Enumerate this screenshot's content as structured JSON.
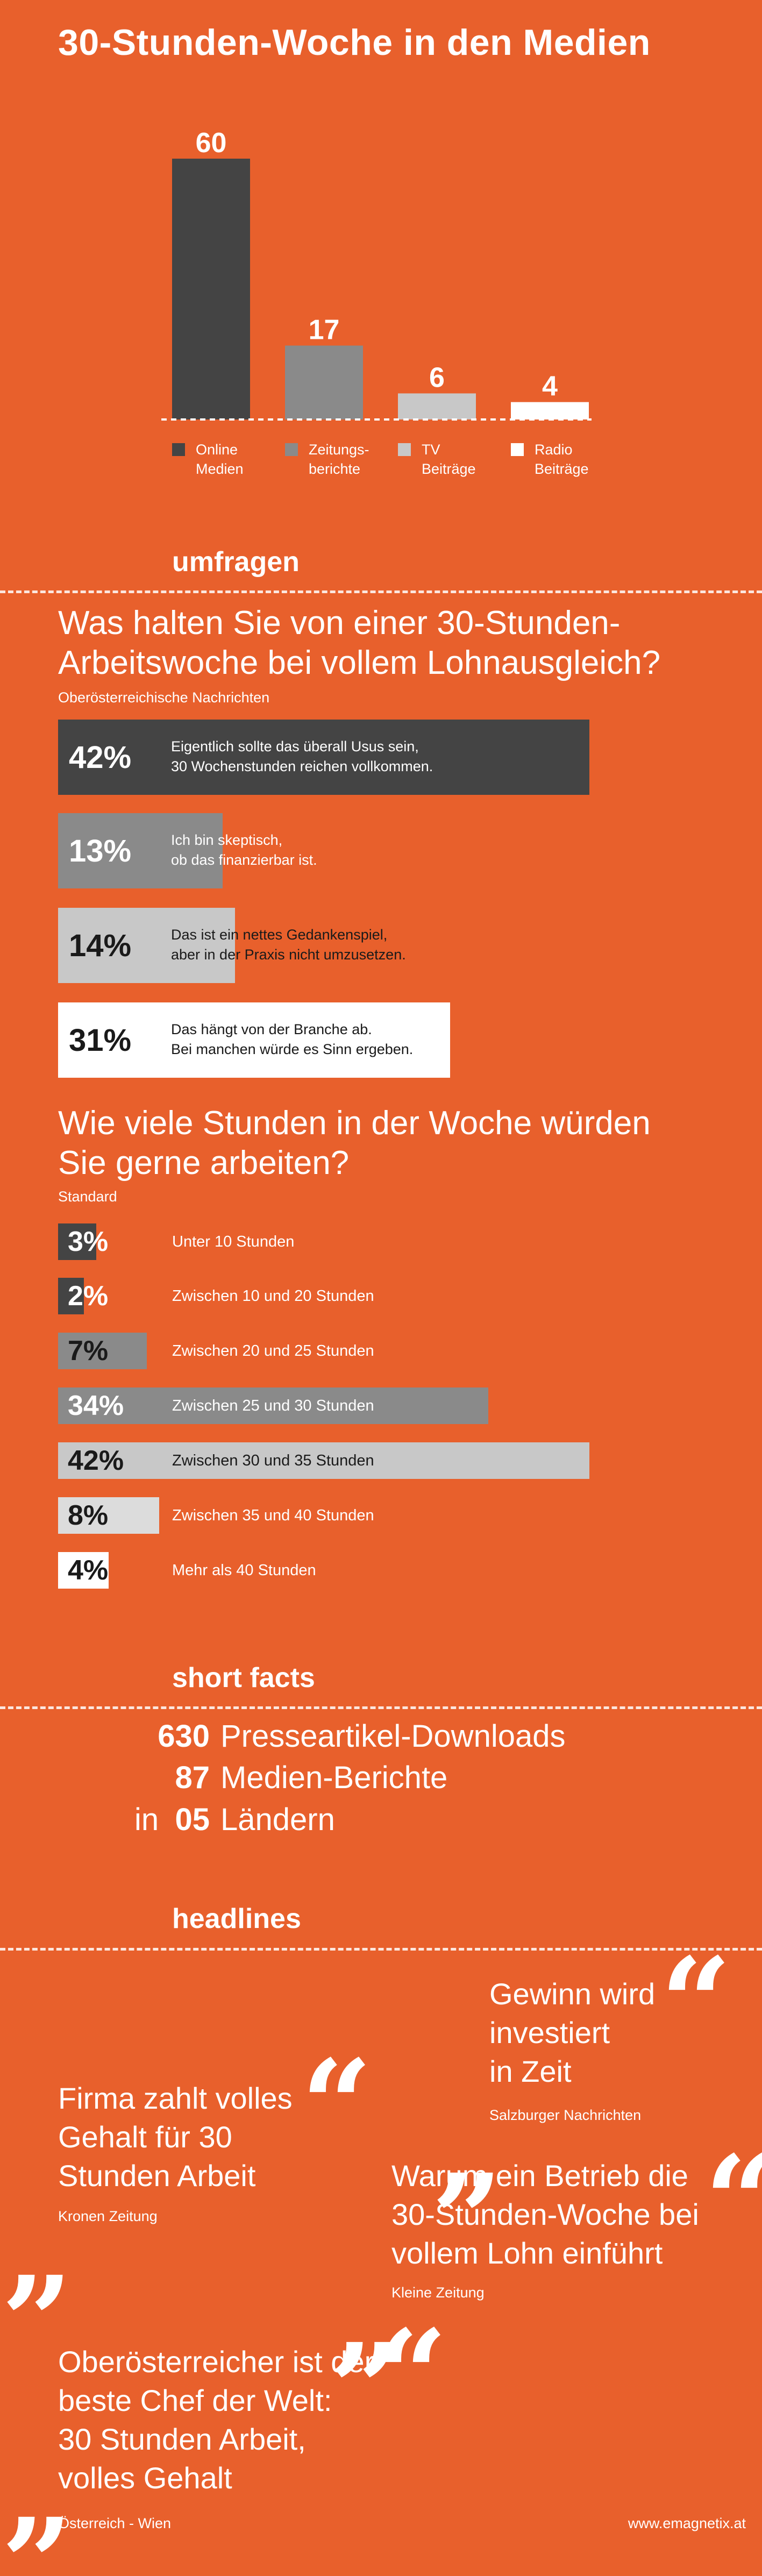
{
  "title": "30-Stunden-Woche in den Medien",
  "chart_data": [
    {
      "type": "bar",
      "categories": [
        "Online Medien",
        "Zeitungsberichte",
        "TV Beiträge",
        "Radio Beiträge"
      ],
      "values": [
        60,
        17,
        6,
        4
      ],
      "colors": [
        "#444444",
        "#8a8a8a",
        "#c8c8c8",
        "#ffffff"
      ],
      "legend": [
        {
          "line1": "Online",
          "line2": "Medien",
          "color": "#444444"
        },
        {
          "line1": "Zeitungs-",
          "line2": "berichte",
          "color": "#8a8a8a"
        },
        {
          "line1": "TV",
          "line2": "Beiträge",
          "color": "#c8c8c8"
        },
        {
          "line1": "Radio",
          "line2": "Beiträge",
          "color": "#ffffff"
        }
      ],
      "ylim": [
        0,
        60
      ]
    },
    {
      "type": "bar",
      "title": "Was halten Sie von einer 30-Stunden-Arbeitswoche bei vollem Lohnausgleich?",
      "source": "Oberösterreichische Nachrichten",
      "unit": "%",
      "items": [
        {
          "value": 42,
          "label": "42%",
          "line1": "Eigentlich sollte das überall Usus sein,",
          "line2": "30 Wochenstunden reichen vollkommen.",
          "color": "#444444",
          "text_color": "#ffffff"
        },
        {
          "value": 13,
          "label": "13%",
          "line1": "Ich bin skeptisch,",
          "line2": "ob das finanzierbar ist.",
          "color": "#8a8a8a",
          "text_color": "#ffffff"
        },
        {
          "value": 14,
          "label": "14%",
          "line1": "Das ist ein nettes Gedankenspiel,",
          "line2": "aber in der Praxis nicht umzusetzen.",
          "color": "#c8c8c8",
          "text_color": "#1a1a1a"
        },
        {
          "value": 31,
          "label": "31%",
          "line1": "Das hängt von der Branche ab.",
          "line2": "Bei manchen würde es Sinn ergeben.",
          "color": "#ffffff",
          "text_color": "#1a1a1a"
        }
      ]
    },
    {
      "type": "bar",
      "title": "Wie viele Stunden in der Woche würden Sie gerne arbeiten?",
      "source": "Standard",
      "unit": "%",
      "items": [
        {
          "value": 3,
          "label": "3%",
          "category": "Unter 10 Stunden",
          "color": "#444444"
        },
        {
          "value": 2,
          "label": "2%",
          "category": "Zwischen 10 und 20 Stunden",
          "color": "#444444"
        },
        {
          "value": 7,
          "label": "7%",
          "category": "Zwischen 20 und 25 Stunden",
          "color": "#8a8a8a"
        },
        {
          "value": 34,
          "label": "34%",
          "category": "Zwischen 25 und 30 Stunden",
          "color": "#8a8a8a"
        },
        {
          "value": 42,
          "label": "42%",
          "category": "Zwischen 30 und 35 Stunden",
          "color": "#c8c8c8"
        },
        {
          "value": 8,
          "label": "8%",
          "category": "Zwischen 35 und 40 Stunden",
          "color": "#dcdcdc"
        },
        {
          "value": 4,
          "label": "4%",
          "category": "Mehr als 40 Stunden",
          "color": "#ffffff"
        }
      ]
    }
  ],
  "sections": {
    "umfragen": "umfragen",
    "short_facts": "short facts",
    "headlines": "headlines"
  },
  "question1": {
    "title_line1": "Was halten Sie von einer 30-Stunden-",
    "title_line2": "Arbeitswoche bei vollem Lohnausgleich?",
    "source": "Oberösterreichische Nachrichten"
  },
  "question2": {
    "title_line1": "Wie viele Stunden in der Woche würden",
    "title_line2": "Sie gerne arbeiten?",
    "source": "Standard"
  },
  "facts": [
    {
      "prefix": "",
      "number": "630",
      "text": "Presseartikel-Downloads"
    },
    {
      "prefix": "",
      "number": "87",
      "text": "Medien-Berichte"
    },
    {
      "prefix": "in",
      "number": "05",
      "text": "Ländern"
    }
  ],
  "headlines": [
    {
      "lines": [
        "Gewinn wird",
        "investiert",
        "in Zeit"
      ],
      "source": "Salzburger Nachrichten"
    },
    {
      "lines": [
        "Firma zahlt volles",
        "Gehalt für 30",
        "Stunden Arbeit"
      ],
      "source": "Kronen Zeitung"
    },
    {
      "lines": [
        "Warum ein Betrieb die",
        "30-Stunden-Woche bei",
        "vollem Lohn einführt"
      ],
      "source": "Kleine Zeitung"
    },
    {
      "lines": [
        "Oberösterreicher ist der",
        "beste Chef der Welt:",
        "30 Stunden Arbeit,",
        "volles Gehalt"
      ],
      "source": "Österreich - Wien"
    }
  ],
  "footer": {
    "url": "www.emagnetix.at"
  }
}
